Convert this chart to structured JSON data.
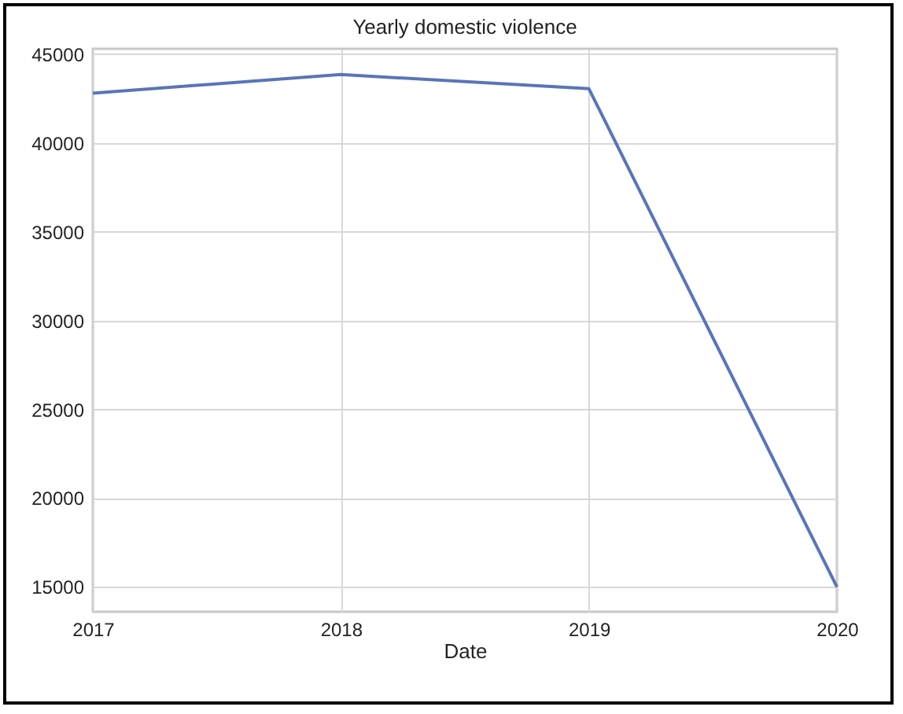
{
  "chart_data": {
    "type": "line",
    "title": "Yearly domestic violence",
    "xlabel": "Date",
    "x": [
      2017,
      2018,
      2019,
      2020
    ],
    "series": [
      {
        "color": "#5975b8",
        "values": [
          42800,
          43850,
          43050,
          15000
        ]
      }
    ],
    "xlim": [
      2017,
      2020
    ],
    "xticks": [
      2017,
      2018,
      2019,
      2020
    ],
    "ylim": [
      13600,
      45300
    ],
    "yticks": [
      15000,
      20000,
      25000,
      30000,
      35000,
      40000,
      45000
    ],
    "grid": true,
    "legend": false,
    "marker": "none",
    "line_style": "solid"
  }
}
